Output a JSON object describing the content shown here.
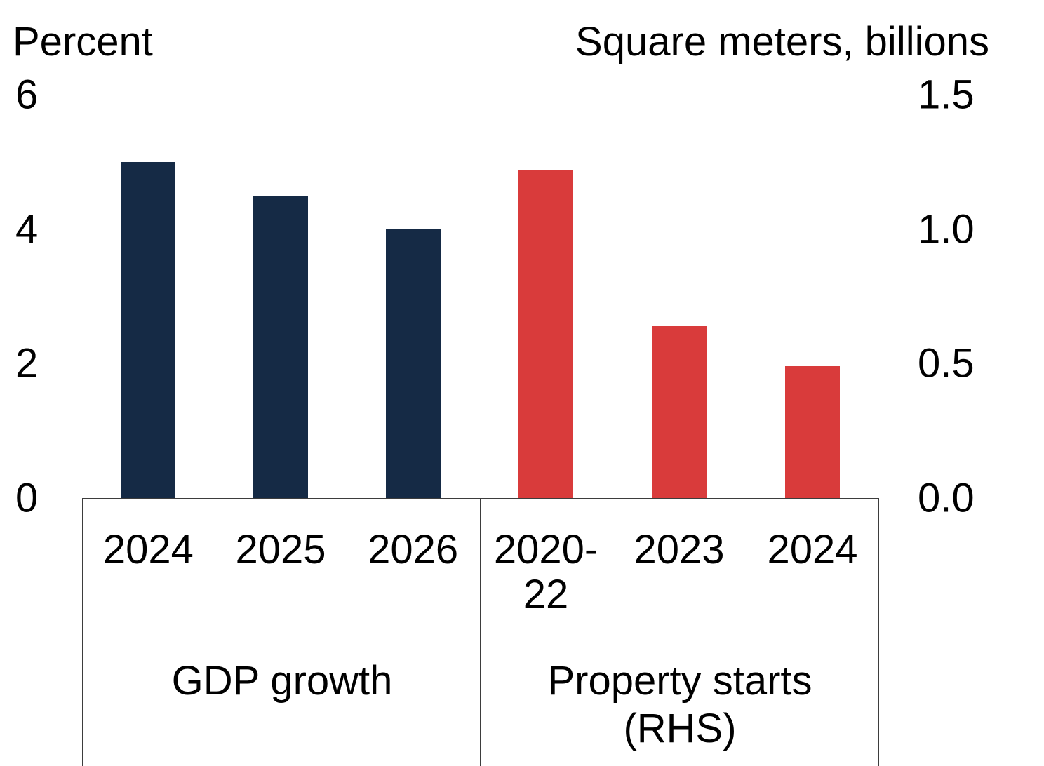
{
  "chart_data": {
    "type": "bar",
    "title": "",
    "left_axis": {
      "label": "Percent",
      "ticks": [
        "6",
        "4",
        "2",
        "0"
      ],
      "range": [
        0,
        6
      ]
    },
    "right_axis": {
      "label": "Square meters, billions",
      "ticks": [
        "1.5",
        "1.0",
        "0.5",
        "0.0"
      ],
      "range": [
        0,
        1.5
      ]
    },
    "groups": [
      {
        "name": "GDP growth",
        "axis": "left",
        "color": "#152a45",
        "categories": [
          "2024",
          "2025",
          "2026"
        ],
        "values": [
          5.0,
          4.5,
          4.0
        ]
      },
      {
        "name": "Property starts (RHS)",
        "axis": "right",
        "color": "#d93b3b",
        "categories": [
          "2020-22",
          "2023",
          "2024"
        ],
        "values": [
          1.22,
          0.64,
          0.49
        ]
      }
    ],
    "layout": {
      "legend": "none",
      "grid": "off",
      "dual_axis": true
    }
  }
}
